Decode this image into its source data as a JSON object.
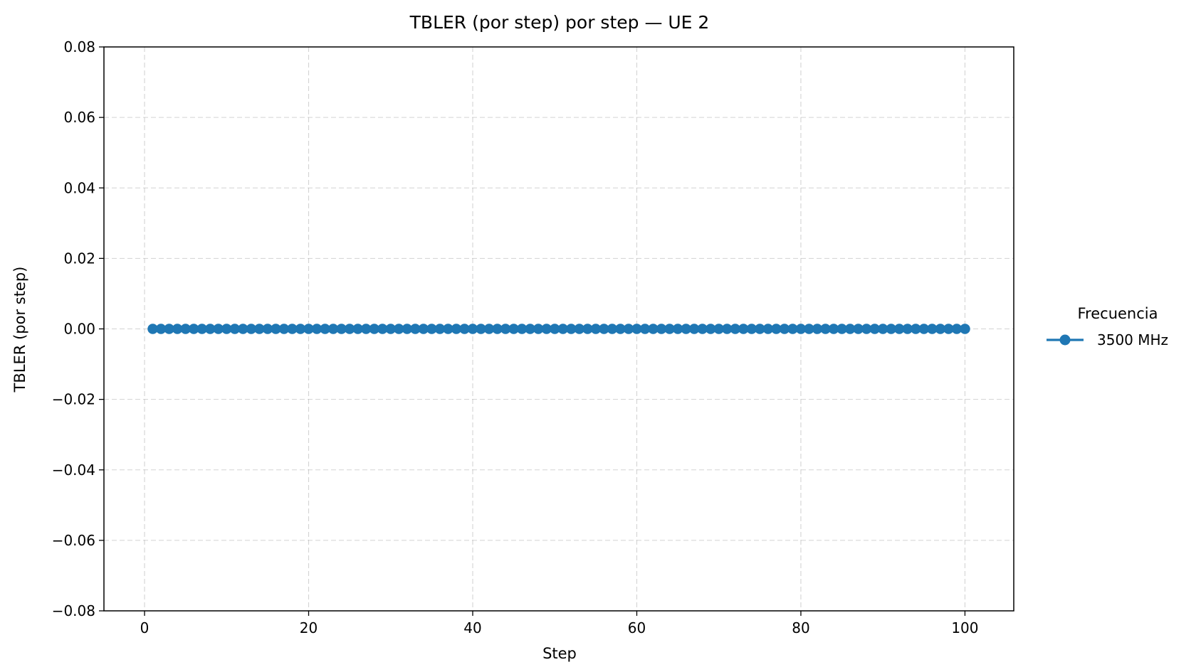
{
  "chart_data": {
    "type": "line",
    "title": "TBLER (por step) por step — UE 2",
    "xlabel": "Step",
    "ylabel": "TBLER (por step)",
    "xlim": [
      -4.95,
      105.95
    ],
    "ylim": [
      -0.08,
      0.08
    ],
    "x_ticks": [
      0,
      20,
      40,
      60,
      80,
      100
    ],
    "x_tick_labels": [
      "0",
      "20",
      "40",
      "60",
      "80",
      "100"
    ],
    "y_ticks": [
      0.08,
      0.06,
      0.04,
      0.02,
      0.0,
      -0.02,
      -0.04,
      -0.06,
      -0.08
    ],
    "y_tick_labels": [
      "0.08",
      "0.06",
      "0.04",
      "0.02",
      "0.00",
      "−0.02",
      "−0.04",
      "−0.06",
      "−0.08"
    ],
    "grid": true,
    "legend": {
      "title": "Frecuencia",
      "placement": "outside-right"
    },
    "series": [
      {
        "name": "3500 MHz",
        "color": "#1f77b4",
        "marker": "circle",
        "x": [
          1,
          2,
          3,
          4,
          5,
          6,
          7,
          8,
          9,
          10,
          11,
          12,
          13,
          14,
          15,
          16,
          17,
          18,
          19,
          20,
          21,
          22,
          23,
          24,
          25,
          26,
          27,
          28,
          29,
          30,
          31,
          32,
          33,
          34,
          35,
          36,
          37,
          38,
          39,
          40,
          41,
          42,
          43,
          44,
          45,
          46,
          47,
          48,
          49,
          50,
          51,
          52,
          53,
          54,
          55,
          56,
          57,
          58,
          59,
          60,
          61,
          62,
          63,
          64,
          65,
          66,
          67,
          68,
          69,
          70,
          71,
          72,
          73,
          74,
          75,
          76,
          77,
          78,
          79,
          80,
          81,
          82,
          83,
          84,
          85,
          86,
          87,
          88,
          89,
          90,
          91,
          92,
          93,
          94,
          95,
          96,
          97,
          98,
          99,
          100
        ],
        "y": [
          0,
          0,
          0,
          0,
          0,
          0,
          0,
          0,
          0,
          0,
          0,
          0,
          0,
          0,
          0,
          0,
          0,
          0,
          0,
          0,
          0,
          0,
          0,
          0,
          0,
          0,
          0,
          0,
          0,
          0,
          0,
          0,
          0,
          0,
          0,
          0,
          0,
          0,
          0,
          0,
          0,
          0,
          0,
          0,
          0,
          0,
          0,
          0,
          0,
          0,
          0,
          0,
          0,
          0,
          0,
          0,
          0,
          0,
          0,
          0,
          0,
          0,
          0,
          0,
          0,
          0,
          0,
          0,
          0,
          0,
          0,
          0,
          0,
          0,
          0,
          0,
          0,
          0,
          0,
          0,
          0,
          0,
          0,
          0,
          0,
          0,
          0,
          0,
          0,
          0,
          0,
          0,
          0,
          0,
          0,
          0,
          0,
          0,
          0,
          0
        ]
      }
    ]
  }
}
